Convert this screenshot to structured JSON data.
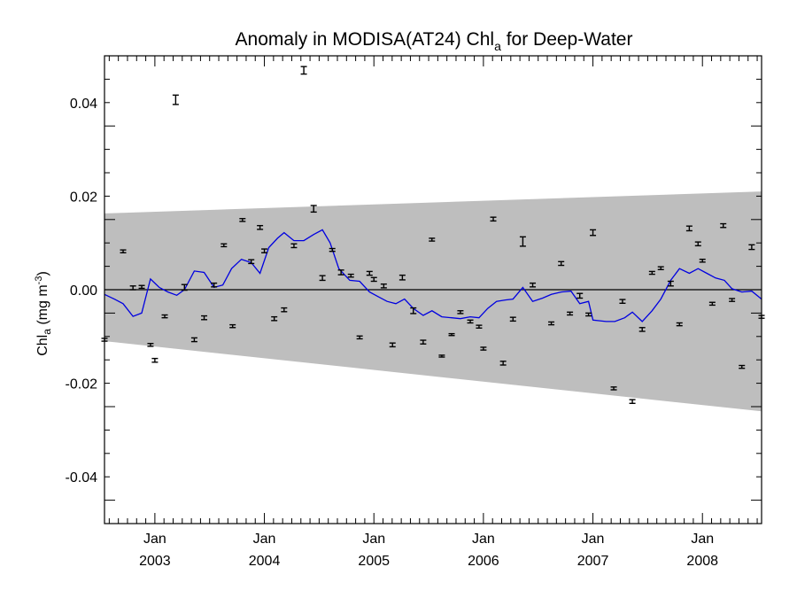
{
  "chart_data": {
    "type": "scatter",
    "title_main": "Anomaly in MODISA(AT24) Chl",
    "title_sub": "a",
    "title_rest": " for Deep-Water",
    "ylabel_main": "Chl",
    "ylabel_sub": "a",
    "ylabel_units": " (mg m",
    "ylabel_sup": "-3",
    "ylabel_close": ")",
    "xlim": [
      2002.54,
      2008.54
    ],
    "ylim": [
      -0.05,
      0.05
    ],
    "y_ticks": [
      -0.04,
      -0.02,
      0.0,
      0.02,
      0.04
    ],
    "y_tick_labels": [
      "-0.04",
      "-0.02",
      "0.00",
      "0.02",
      "0.04"
    ],
    "x_ticks": [
      2003.0,
      2004.0,
      2005.0,
      2006.0,
      2007.0,
      2008.0
    ],
    "x_tick_month_labels": [
      "Jan",
      "Jan",
      "Jan",
      "Jan",
      "Jan",
      "Jan"
    ],
    "x_tick_year_labels": [
      "2003",
      "2004",
      "2005",
      "2006",
      "2007",
      "2008"
    ],
    "band": {
      "upper": [
        [
          2002.54,
          0.0163
        ],
        [
          2008.54,
          0.021
        ]
      ],
      "lower": [
        [
          2002.54,
          -0.011
        ],
        [
          2008.54,
          -0.026
        ]
      ],
      "color": "#bebebe"
    },
    "zero_line": 0.0,
    "series": [
      {
        "kind": "errorbar",
        "color": "#000000",
        "points": [
          [
            2002.54,
            -0.0107,
            0.0003
          ],
          [
            2002.71,
            0.0082,
            0.0003
          ],
          [
            2002.8,
            0.0004,
            0.0004
          ],
          [
            2002.88,
            0.0006,
            0.0003
          ],
          [
            2002.96,
            -0.0118,
            0.0003
          ],
          [
            2003.0,
            -0.0151,
            0.0004
          ],
          [
            2003.09,
            -0.0057,
            0.0003
          ],
          [
            2003.19,
            0.0406,
            0.001
          ],
          [
            2003.27,
            0.0005,
            0.0006
          ],
          [
            2003.36,
            -0.0107,
            0.0004
          ],
          [
            2003.45,
            -0.006,
            0.0004
          ],
          [
            2003.54,
            0.001,
            0.0004
          ],
          [
            2003.63,
            0.0095,
            0.0003
          ],
          [
            2003.71,
            -0.0078,
            0.0003
          ],
          [
            2003.8,
            0.0149,
            0.0003
          ],
          [
            2003.88,
            0.006,
            0.0004
          ],
          [
            2003.96,
            0.0133,
            0.0004
          ],
          [
            2004.0,
            0.0083,
            0.0004
          ],
          [
            2004.09,
            -0.0062,
            0.0004
          ],
          [
            2004.18,
            -0.0043,
            0.0004
          ],
          [
            2004.27,
            0.0094,
            0.0004
          ],
          [
            2004.36,
            0.0469,
            0.0008
          ],
          [
            2004.45,
            0.0173,
            0.0007
          ],
          [
            2004.53,
            0.0025,
            0.0005
          ],
          [
            2004.62,
            0.0085,
            0.0003
          ],
          [
            2004.7,
            0.0037,
            0.0005
          ],
          [
            2004.79,
            0.003,
            0.0003
          ],
          [
            2004.87,
            -0.0102,
            0.0003
          ],
          [
            2004.96,
            0.0035,
            0.0004
          ],
          [
            2005.0,
            0.0022,
            0.0004
          ],
          [
            2005.09,
            0.0008,
            0.0004
          ],
          [
            2005.17,
            -0.0118,
            0.0004
          ],
          [
            2005.26,
            0.0026,
            0.0005
          ],
          [
            2005.36,
            -0.0045,
            0.0006
          ],
          [
            2005.45,
            -0.0112,
            0.0004
          ],
          [
            2005.53,
            0.0107,
            0.0003
          ],
          [
            2005.62,
            -0.0142,
            0.0002
          ],
          [
            2005.71,
            -0.0096,
            0.0002
          ],
          [
            2005.79,
            -0.0048,
            0.0003
          ],
          [
            2005.88,
            -0.0068,
            0.0003
          ],
          [
            2005.96,
            -0.0079,
            0.0003
          ],
          [
            2006.0,
            -0.0126,
            0.0003
          ],
          [
            2006.09,
            0.0151,
            0.0004
          ],
          [
            2006.18,
            -0.0157,
            0.0004
          ],
          [
            2006.27,
            -0.0063,
            0.0004
          ],
          [
            2006.36,
            0.0103,
            0.001
          ],
          [
            2006.45,
            0.001,
            0.0004
          ],
          [
            2006.62,
            -0.0072,
            0.0003
          ],
          [
            2006.71,
            0.0056,
            0.0004
          ],
          [
            2006.79,
            -0.0051,
            0.0003
          ],
          [
            2006.88,
            -0.0013,
            0.0005
          ],
          [
            2006.96,
            -0.0053,
            0.0003
          ],
          [
            2007.0,
            0.0122,
            0.0006
          ],
          [
            2007.19,
            -0.0211,
            0.0003
          ],
          [
            2007.27,
            -0.0025,
            0.0004
          ],
          [
            2007.36,
            -0.0239,
            0.0004
          ],
          [
            2007.45,
            -0.0085,
            0.0004
          ],
          [
            2007.54,
            0.0036,
            0.0003
          ],
          [
            2007.62,
            0.0046,
            0.0003
          ],
          [
            2007.71,
            0.0013,
            0.0005
          ],
          [
            2007.79,
            -0.0074,
            0.0003
          ],
          [
            2007.88,
            0.0131,
            0.0005
          ],
          [
            2007.96,
            0.0098,
            0.0004
          ],
          [
            2008.0,
            0.0062,
            0.0003
          ],
          [
            2008.09,
            -0.003,
            0.0003
          ],
          [
            2008.19,
            0.0137,
            0.0004
          ],
          [
            2008.27,
            -0.0022,
            0.0003
          ],
          [
            2008.36,
            -0.0165,
            0.0003
          ],
          [
            2008.45,
            0.0091,
            0.0005
          ],
          [
            2008.54,
            -0.0058,
            0.0003
          ]
        ]
      },
      {
        "kind": "line",
        "color": "#0000e0",
        "points": [
          [
            2002.54,
            -0.001
          ],
          [
            2002.63,
            -0.002
          ],
          [
            2002.71,
            -0.003
          ],
          [
            2002.8,
            -0.0057
          ],
          [
            2002.88,
            -0.005
          ],
          [
            2002.96,
            0.0023
          ],
          [
            2003.04,
            0.0005
          ],
          [
            2003.12,
            -0.0005
          ],
          [
            2003.2,
            -0.0012
          ],
          [
            2003.27,
            0.0
          ],
          [
            2003.36,
            0.004
          ],
          [
            2003.45,
            0.0037
          ],
          [
            2003.54,
            0.0005
          ],
          [
            2003.62,
            0.001
          ],
          [
            2003.7,
            0.0045
          ],
          [
            2003.79,
            0.0065
          ],
          [
            2003.88,
            0.0058
          ],
          [
            2003.96,
            0.0035
          ],
          [
            2004.04,
            0.009
          ],
          [
            2004.12,
            0.011
          ],
          [
            2004.18,
            0.0122
          ],
          [
            2004.27,
            0.0105
          ],
          [
            2004.36,
            0.0105
          ],
          [
            2004.45,
            0.0118
          ],
          [
            2004.53,
            0.0128
          ],
          [
            2004.6,
            0.01
          ],
          [
            2004.68,
            0.0045
          ],
          [
            2004.78,
            0.002
          ],
          [
            2004.87,
            0.0018
          ],
          [
            2004.96,
            -0.0005
          ],
          [
            2005.04,
            -0.0015
          ],
          [
            2005.12,
            -0.0025
          ],
          [
            2005.2,
            -0.003
          ],
          [
            2005.28,
            -0.002
          ],
          [
            2005.36,
            -0.004
          ],
          [
            2005.45,
            -0.0055
          ],
          [
            2005.53,
            -0.0045
          ],
          [
            2005.62,
            -0.0058
          ],
          [
            2005.71,
            -0.006
          ],
          [
            2005.79,
            -0.0062
          ],
          [
            2005.88,
            -0.0058
          ],
          [
            2005.96,
            -0.006
          ],
          [
            2006.04,
            -0.004
          ],
          [
            2006.12,
            -0.0025
          ],
          [
            2006.2,
            -0.0022
          ],
          [
            2006.27,
            -0.002
          ],
          [
            2006.36,
            0.0005
          ],
          [
            2006.45,
            -0.0025
          ],
          [
            2006.54,
            -0.0018
          ],
          [
            2006.62,
            -0.001
          ],
          [
            2006.71,
            -0.0005
          ],
          [
            2006.8,
            -0.0003
          ],
          [
            2006.88,
            -0.003
          ],
          [
            2006.96,
            -0.0025
          ],
          [
            2007.0,
            -0.0065
          ],
          [
            2007.12,
            -0.0068
          ],
          [
            2007.2,
            -0.0068
          ],
          [
            2007.29,
            -0.006
          ],
          [
            2007.36,
            -0.0048
          ],
          [
            2007.45,
            -0.0068
          ],
          [
            2007.54,
            -0.0045
          ],
          [
            2007.62,
            -0.002
          ],
          [
            2007.71,
            0.002
          ],
          [
            2007.79,
            0.0045
          ],
          [
            2007.88,
            0.0035
          ],
          [
            2007.96,
            0.0045
          ],
          [
            2008.04,
            0.0035
          ],
          [
            2008.12,
            0.0025
          ],
          [
            2008.2,
            0.002
          ],
          [
            2008.27,
            0.0002
          ],
          [
            2008.36,
            -0.0005
          ],
          [
            2008.45,
            -0.0003
          ],
          [
            2008.54,
            -0.002
          ]
        ]
      }
    ],
    "grid": false,
    "legend": "none"
  }
}
